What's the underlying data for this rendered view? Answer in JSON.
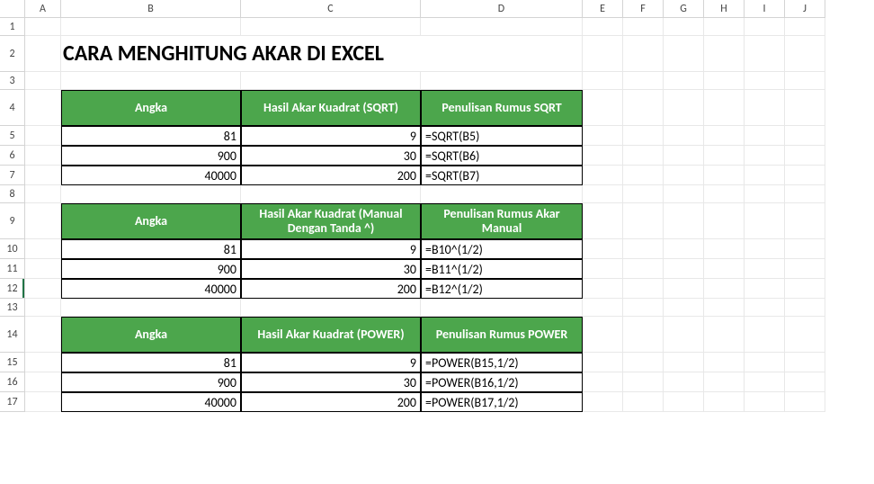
{
  "columns": [
    "A",
    "B",
    "C",
    "D",
    "E",
    "F",
    "G",
    "H",
    "I",
    "J"
  ],
  "rowLabels": [
    "1",
    "2",
    "3",
    "4",
    "5",
    "6",
    "7",
    "8",
    "9",
    "10",
    "11",
    "12",
    "13",
    "14",
    "15",
    "16",
    "17"
  ],
  "title": "CARA MENGHITUNG AKAR DI EXCEL",
  "header_bg": "#4ca64c",
  "header_fg": "#ffffff",
  "border_color": "#000000",
  "tables": [
    {
      "headers": [
        "Angka",
        "Hasil Akar Kuadrat (SQRT)",
        "Penulisan Rumus SQRT"
      ],
      "rows": [
        {
          "angka": "81",
          "hasil": "9",
          "rumus": "=SQRT(B5)"
        },
        {
          "angka": "900",
          "hasil": "30",
          "rumus": "=SQRT(B6)"
        },
        {
          "angka": "40000",
          "hasil": "200",
          "rumus": "=SQRT(B7)"
        }
      ]
    },
    {
      "headers": [
        "Angka",
        "Hasil Akar Kuadrat (Manual Dengan Tanda ^)",
        "Penulisan Rumus Akar Manual"
      ],
      "rows": [
        {
          "angka": "81",
          "hasil": "9",
          "rumus": "=B10^(1/2)"
        },
        {
          "angka": "900",
          "hasil": "30",
          "rumus": "=B11^(1/2)"
        },
        {
          "angka": "40000",
          "hasil": "200",
          "rumus": "=B12^(1/2)"
        }
      ]
    },
    {
      "headers": [
        "Angka",
        "Hasil Akar Kuadrat (POWER)",
        "Penulisan Rumus POWER"
      ],
      "rows": [
        {
          "angka": "81",
          "hasil": "9",
          "rumus": "=POWER(B15,1/2)"
        },
        {
          "angka": "900",
          "hasil": "30",
          "rumus": "=POWER(B16,1/2)"
        },
        {
          "angka": "40000",
          "hasil": "200",
          "rumus": "=POWER(B17,1/2)"
        }
      ]
    }
  ],
  "selected_row": "12"
}
